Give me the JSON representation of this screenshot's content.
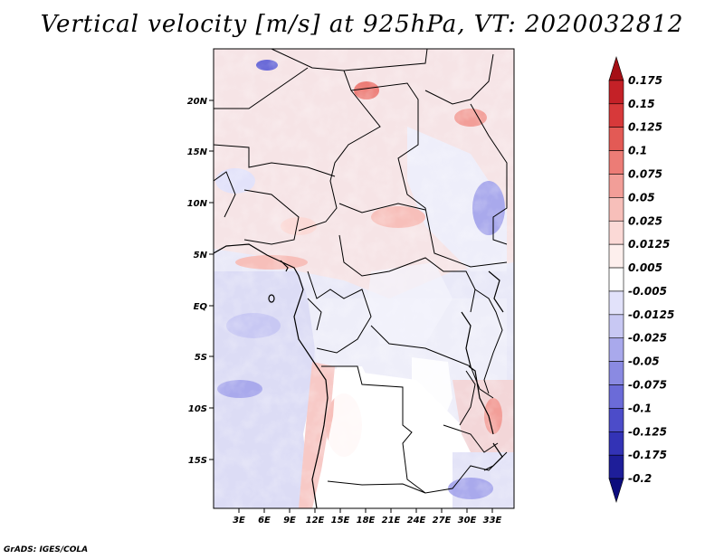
{
  "title": "Vertical velocity [m/s] at 925hPa, VT: 2020032812",
  "footer": "GrADS: IGES/COLA",
  "map": {
    "lat_labels": [
      "20N",
      "15N",
      "10N",
      "5N",
      "EQ",
      "5S",
      "10S",
      "15S"
    ],
    "lon_labels": [
      "3E",
      "6E",
      "9E",
      "12E",
      "15E",
      "18E",
      "21E",
      "24E",
      "27E",
      "30E",
      "33E"
    ]
  },
  "colorbar": {
    "labels": [
      "0.175",
      "0.15",
      "0.125",
      "0.1",
      "0.075",
      "0.05",
      "0.025",
      "0.0125",
      "0.005",
      "-0.005",
      "-0.0125",
      "-0.025",
      "-0.05",
      "-0.075",
      "-0.1",
      "-0.125",
      "-0.175",
      "-0.2"
    ],
    "colors": [
      "#a50f15",
      "#c42127",
      "#d7393a",
      "#e35a55",
      "#ec7c76",
      "#f29e98",
      "#f7bfba",
      "#fbd9d6",
      "#fdefed",
      "#ffffff",
      "#e2e2fa",
      "#c8c8f3",
      "#a9a9ec",
      "#8a8ae2",
      "#6b6bd8",
      "#4c4cc9",
      "#3333b6",
      "#1e1e99",
      "#0c0c7d"
    ]
  }
}
